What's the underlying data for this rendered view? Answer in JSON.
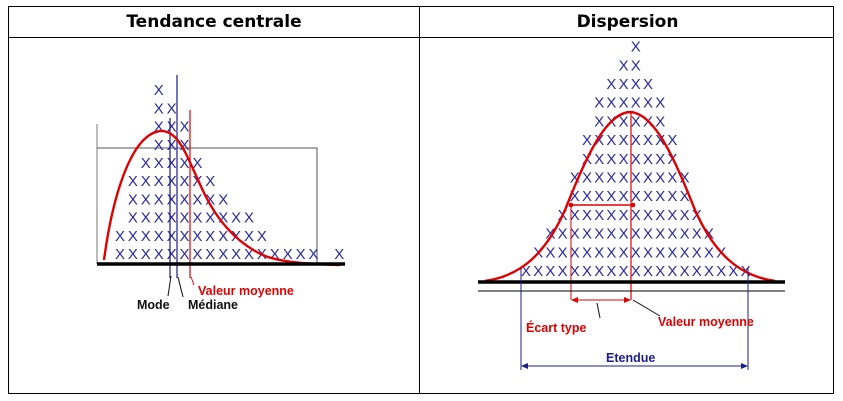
{
  "headers": {
    "left": "Tendance centrale",
    "right": "Dispersion"
  },
  "marker": "X",
  "left_panel": {
    "labels": {
      "mode": "Mode",
      "mediane": "Médiane",
      "valeur_moyenne": "Valeur moyenne"
    },
    "column_counts": [
      2,
      5,
      6,
      10,
      9,
      8,
      6,
      5,
      4,
      3,
      3,
      2,
      1,
      1,
      1,
      1,
      0,
      1
    ]
  },
  "right_panel": {
    "labels": {
      "ecart_type": "Écart type",
      "valeur_moyenne": "Valeur moyenne",
      "etendue": "Etendue"
    },
    "column_counts": [
      1,
      2,
      3,
      4,
      6,
      8,
      10,
      11,
      12,
      13,
      11,
      10,
      8,
      6,
      4,
      3,
      2,
      1,
      1
    ]
  },
  "colors": {
    "marker": "#2a2a9e",
    "curve": "#e00000",
    "axis": "#000000",
    "annotation_red": "#e00000",
    "annotation_blue": "#1c1c8a"
  }
}
